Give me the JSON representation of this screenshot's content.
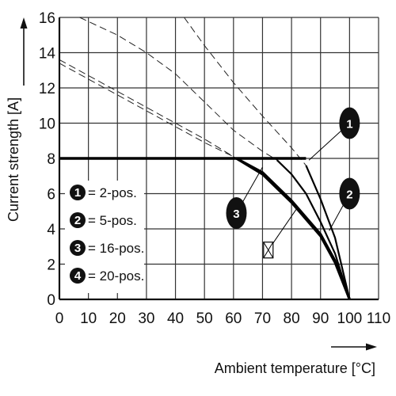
{
  "chart_data": {
    "type": "line",
    "title": "",
    "xlabel": "Ambient temperature [°C]",
    "ylabel": "Current strength [A]",
    "xlim": [
      0,
      110
    ],
    "ylim": [
      0,
      16
    ],
    "x_ticks": [
      0,
      10,
      20,
      30,
      40,
      50,
      60,
      70,
      80,
      90,
      100,
      110
    ],
    "y_ticks": [
      0,
      2,
      4,
      6,
      8,
      10,
      12,
      14,
      16
    ],
    "grid": true,
    "legend_position": "bottom-left",
    "legend": [
      {
        "marker": "1",
        "label": "= 2-pos."
      },
      {
        "marker": "2",
        "label": "= 5-pos."
      },
      {
        "marker": "3",
        "label": "= 16-pos."
      },
      {
        "marker": "4",
        "label": "= 20-pos."
      }
    ],
    "rated_current": {
      "value": 8,
      "x": [
        0,
        85
      ]
    },
    "series": [
      {
        "marker": "1",
        "dashed": {
          "x": [
            43,
            50,
            60,
            70,
            80,
            85
          ],
          "y": [
            16,
            14.4,
            12.3,
            10.4,
            8.6,
            7.6
          ]
        },
        "solid": {
          "x": [
            85,
            90,
            95,
            100
          ],
          "y": [
            7.6,
            5.7,
            3.5,
            0
          ]
        }
      },
      {
        "marker": "2",
        "dashed": {
          "x": [
            7,
            20,
            30,
            40,
            50,
            60,
            70,
            75
          ],
          "y": [
            16,
            15,
            14,
            12.8,
            11.2,
            9.6,
            8.4,
            7.9
          ]
        },
        "solid": {
          "x": [
            75,
            80,
            85,
            90,
            95,
            100
          ],
          "y": [
            7.9,
            7.1,
            6,
            4.4,
            2.6,
            0
          ]
        }
      },
      {
        "marker": "3",
        "dashed": {
          "x": [
            0,
            10,
            20,
            30,
            40,
            50,
            60,
            61
          ],
          "y": [
            13.6,
            12.7,
            11.8,
            10.9,
            10,
            9.1,
            8.1,
            8
          ]
        },
        "solid": {
          "x": [
            61,
            70,
            80,
            90,
            95,
            100
          ],
          "y": [
            8,
            7.1,
            5.5,
            3.6,
            2.1,
            0
          ]
        }
      },
      {
        "marker": "4",
        "dashed": {
          "x": [
            0,
            10,
            20,
            30,
            40,
            50,
            60,
            61
          ],
          "y": [
            13.4,
            12.5,
            11.6,
            10.7,
            9.8,
            8.9,
            8.1,
            8
          ]
        },
        "solid": {
          "x": [
            61,
            70,
            80,
            90,
            95,
            100
          ],
          "y": [
            8,
            7.2,
            5.6,
            3.7,
            2.2,
            0
          ]
        }
      }
    ],
    "annotations": [
      {
        "marker": "1",
        "at": [
          100,
          10
        ]
      },
      {
        "marker": "2",
        "at": [
          100,
          6
        ]
      },
      {
        "marker": "3",
        "at": [
          61,
          4.9
        ]
      },
      {
        "marker": "☒",
        "at": [
          72,
          2.8
        ]
      }
    ]
  }
}
